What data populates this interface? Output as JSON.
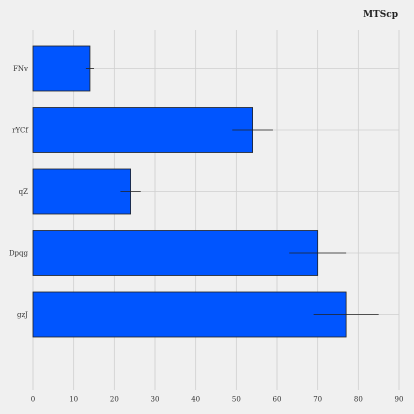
{
  "chart_data": {
    "type": "bar",
    "orientation": "horizontal",
    "title": "MTScp",
    "categories": [
      "FNv",
      "rYCf",
      "qZ",
      "Dpqg",
      "gzJ"
    ],
    "values": [
      14,
      54,
      24,
      70,
      77
    ],
    "errors": [
      1,
      5,
      2.5,
      7,
      8
    ],
    "xlim": [
      0,
      90
    ],
    "xticks": [
      0,
      10,
      20,
      30,
      40,
      50,
      60,
      70,
      80,
      90
    ],
    "xlabel": "",
    "ylabel": "",
    "grid": true,
    "colors": {
      "bar": "#0055ff",
      "edge": "#222222",
      "background": "#f0f0f0",
      "grid": "#cfcfcf"
    }
  }
}
